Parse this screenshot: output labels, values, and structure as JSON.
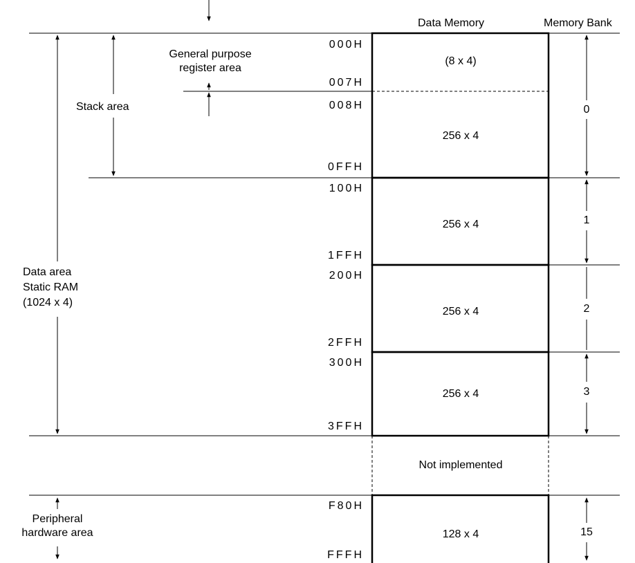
{
  "header": {
    "data_memory": "Data Memory",
    "memory_bank": "Memory Bank"
  },
  "regions": {
    "general_purpose": "General purpose register area",
    "gp_line1": "General purpose",
    "gp_line2": "register area",
    "stack_area": "Stack area",
    "data_area_line1": "Data area",
    "data_area_line2": "Static RAM",
    "data_area_line3": "(1024 x 4)",
    "peripheral_line1": "Peripheral",
    "peripheral_line2": "hardware area"
  },
  "addresses": {
    "a000": "000H",
    "a007": "007H",
    "a008": "008H",
    "a0FF": "0FFH",
    "a100": "100H",
    "a1FF": "1FFH",
    "a200": "200H",
    "a2FF": "2FFH",
    "a300": "300H",
    "a3FF": "3FFH",
    "aF80": "F80H",
    "aFFF": "FFFH"
  },
  "cells": {
    "gp_size": "(8 x 4)",
    "bank0_size": "256 x 4",
    "bank1_size": "256 x 4",
    "bank2_size": "256 x 4",
    "bank3_size": "256 x 4",
    "not_implemented": "Not implemented",
    "bank15_size": "128 x 4"
  },
  "banks": {
    "b0": "0",
    "b1": "1",
    "b2": "2",
    "b3": "3",
    "b15": "15"
  }
}
